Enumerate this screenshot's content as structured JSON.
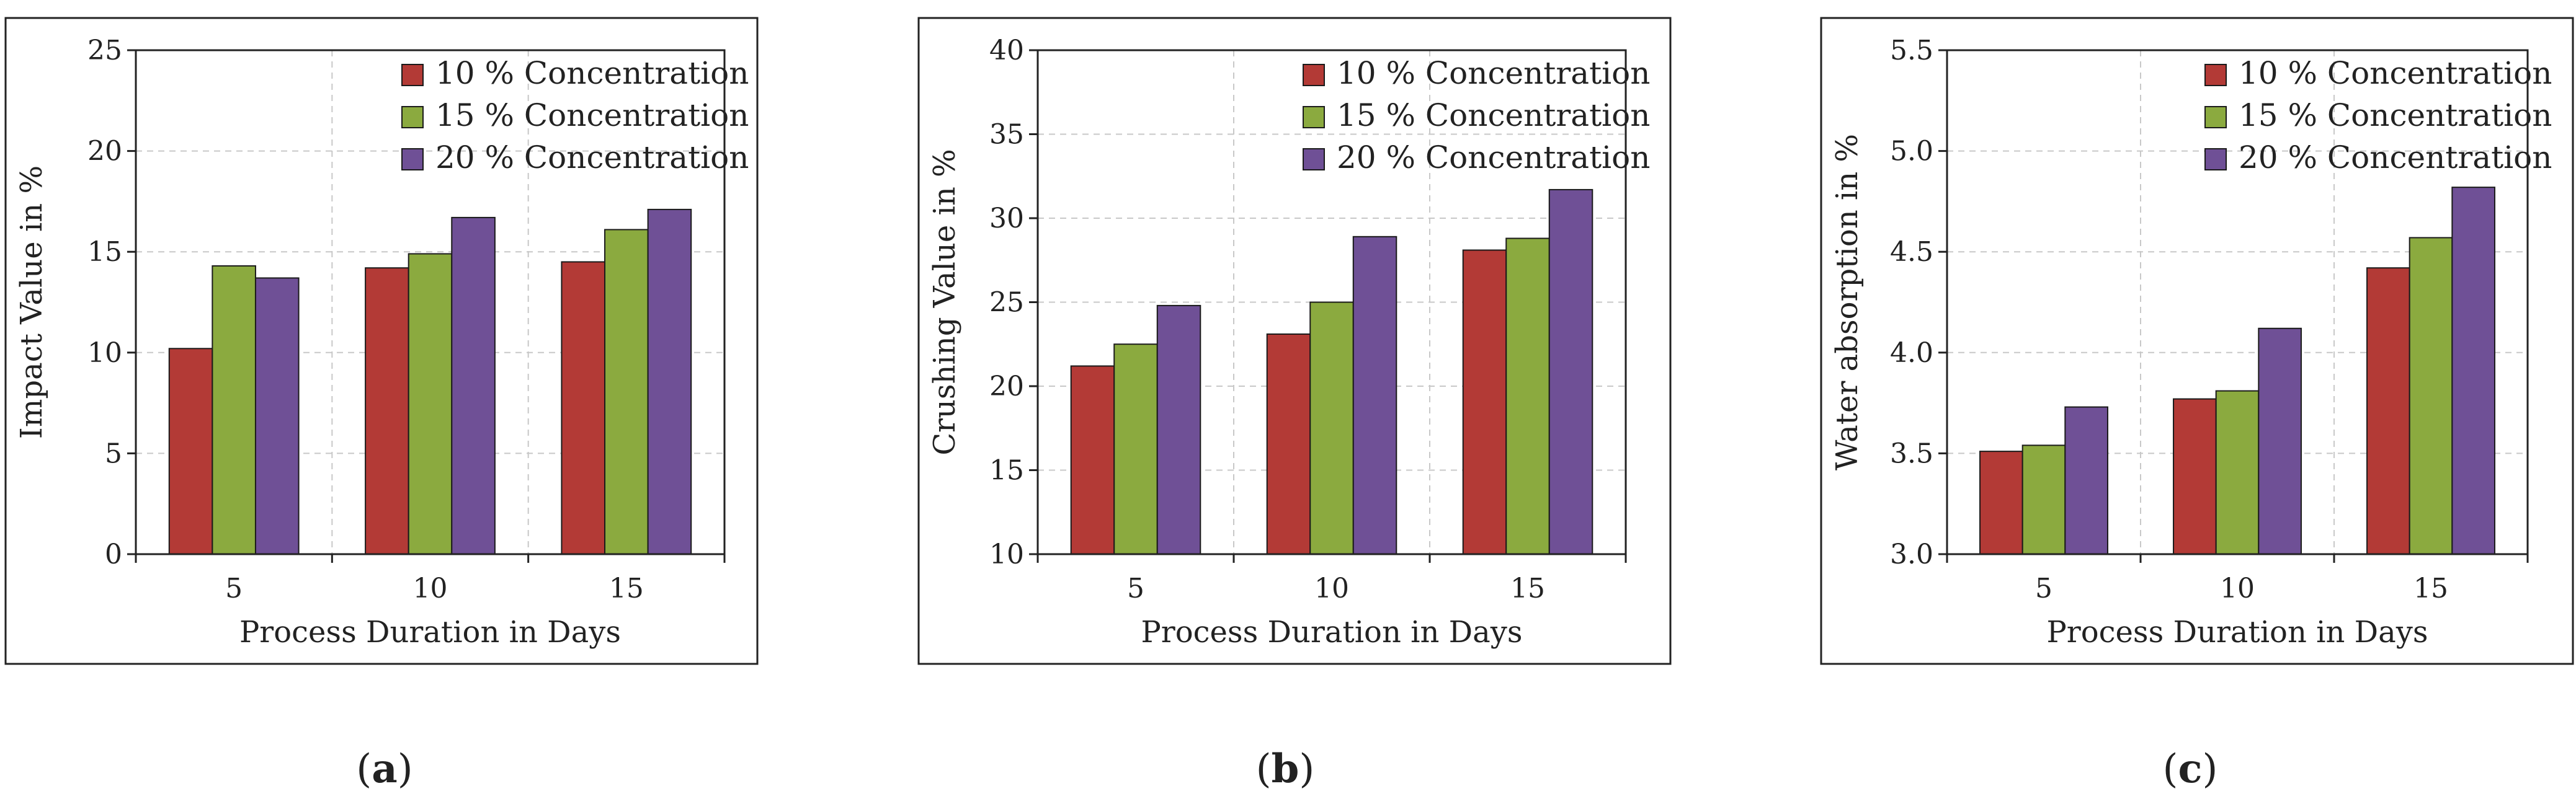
{
  "figure": {
    "panels": [
      {
        "label": "(",
        "letter": "a",
        "close": ")"
      },
      {
        "label": "(",
        "letter": "b",
        "close": ")"
      },
      {
        "label": "(",
        "letter": "c",
        "close": ")"
      }
    ]
  },
  "colors": {
    "series": [
      "#B33A36",
      "#8BAA3F",
      "#6F5096"
    ],
    "grid": "#c8c8c8",
    "frame": "#222222"
  },
  "chart_data": [
    {
      "type": "bar",
      "categories": [
        "5",
        "10",
        "15"
      ],
      "series": [
        {
          "name": "10 % Concentration",
          "values": [
            10.2,
            14.2,
            14.5
          ]
        },
        {
          "name": "15 % Concentration",
          "values": [
            14.3,
            14.9,
            16.1
          ]
        },
        {
          "name": "20 % Concentration",
          "values": [
            13.7,
            16.7,
            17.1
          ]
        }
      ],
      "xlabel": "Process Duration in Days",
      "ylabel": "Impact Value in %",
      "ylim": [
        0,
        25
      ],
      "yticks": [
        "0",
        "5",
        "10",
        "15",
        "20",
        "25"
      ],
      "grid": true,
      "legend": "top-right"
    },
    {
      "type": "bar",
      "categories": [
        "5",
        "10",
        "15"
      ],
      "series": [
        {
          "name": "10 % Concentration",
          "values": [
            21.2,
            23.1,
            28.1
          ]
        },
        {
          "name": "15 % Concentration",
          "values": [
            22.5,
            25.0,
            28.8
          ]
        },
        {
          "name": "20 % Concentration",
          "values": [
            24.8,
            28.9,
            31.7
          ]
        }
      ],
      "xlabel": "Process Duration in Days",
      "ylabel": "Crushing Value in %",
      "ylim": [
        10,
        40
      ],
      "yticks": [
        "10",
        "15",
        "20",
        "25",
        "30",
        "35",
        "40"
      ],
      "grid": true,
      "legend": "top-right"
    },
    {
      "type": "bar",
      "categories": [
        "5",
        "10",
        "15"
      ],
      "series": [
        {
          "name": "10 % Concentration",
          "values": [
            3.51,
            3.77,
            4.42
          ]
        },
        {
          "name": "15 % Concentration",
          "values": [
            3.54,
            3.81,
            4.57
          ]
        },
        {
          "name": "20 % Concentration",
          "values": [
            3.73,
            4.12,
            4.82
          ]
        }
      ],
      "xlabel": "Process Duration in Days",
      "ylabel": "Water absorption in %",
      "ylim": [
        3.0,
        5.5
      ],
      "yticks": [
        "3.0",
        "3.5",
        "4.0",
        "4.5",
        "5.0",
        "5.5"
      ],
      "grid": true,
      "legend": "top-right"
    }
  ]
}
